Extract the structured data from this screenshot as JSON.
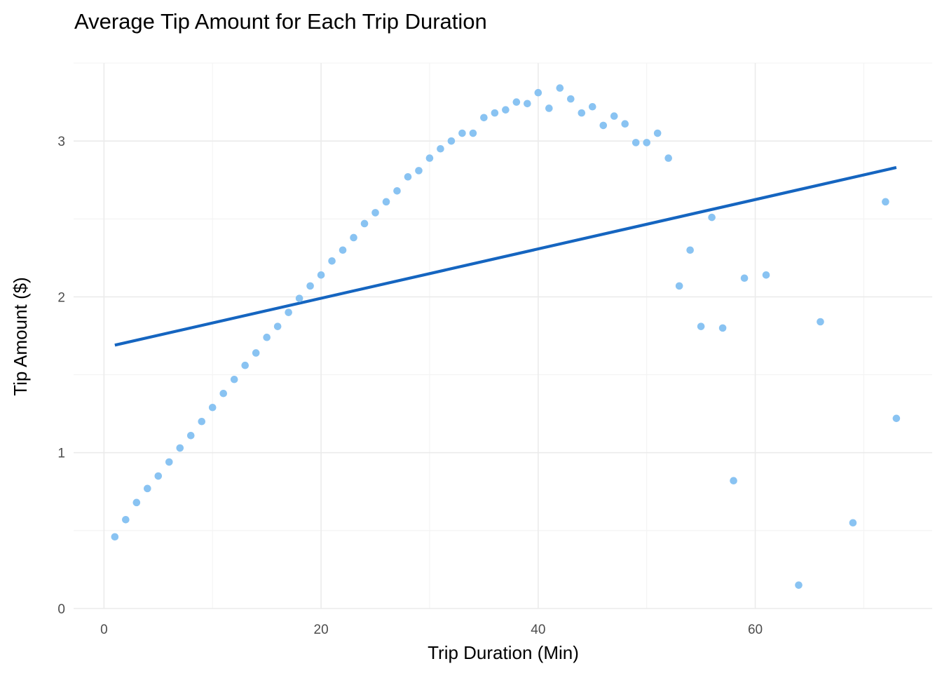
{
  "chart_data": {
    "type": "scatter",
    "title": "Average Tip Amount for Each Trip Duration",
    "xlabel": "Trip Duration (Min)",
    "ylabel": "Tip Amount ($)",
    "xlim": [
      -2.8,
      76.3
    ],
    "ylim": [
      0,
      3.5
    ],
    "x_ticks": [
      0,
      20,
      40,
      60
    ],
    "x_tick_labels": [
      "0",
      "20",
      "40",
      "60"
    ],
    "x_minor_ticks": [
      10,
      30,
      50,
      70
    ],
    "y_ticks": [
      0,
      1,
      2,
      3
    ],
    "y_tick_labels": [
      "0",
      "1",
      "2",
      "3"
    ],
    "y_minor_ticks": [
      0.5,
      1.5,
      2.5,
      3.5
    ],
    "grid": true,
    "legend": "none",
    "point_color": "#89c3f2",
    "line_color": "#1565c0",
    "series": [
      {
        "type": "scatter",
        "x": [
          1,
          2,
          3,
          4,
          5,
          6,
          7,
          8,
          9,
          10,
          11,
          12,
          13,
          14,
          15,
          16,
          17,
          18,
          19,
          20,
          21,
          22,
          23,
          24,
          25,
          26,
          27,
          28,
          29,
          30,
          31,
          32,
          33,
          34,
          35,
          36,
          37,
          38,
          39,
          40,
          41,
          42,
          43,
          44,
          45,
          46,
          47,
          48,
          49,
          50,
          51,
          52,
          53,
          54,
          55,
          56,
          57,
          58,
          59,
          61,
          64,
          66,
          69,
          72,
          73
        ],
        "y": [
          0.46,
          0.57,
          0.68,
          0.77,
          0.85,
          0.94,
          1.03,
          1.11,
          1.2,
          1.29,
          1.38,
          1.47,
          1.56,
          1.64,
          1.74,
          1.81,
          1.9,
          1.99,
          2.07,
          2.14,
          2.23,
          2.3,
          2.38,
          2.47,
          2.54,
          2.61,
          2.68,
          2.77,
          2.81,
          2.89,
          2.95,
          3.0,
          3.05,
          3.05,
          3.15,
          3.18,
          3.2,
          3.25,
          3.24,
          3.31,
          3.21,
          3.34,
          3.27,
          3.18,
          3.22,
          3.1,
          3.16,
          3.11,
          2.99,
          2.99,
          3.05,
          2.89,
          2.07,
          2.3,
          1.81,
          2.51,
          1.8,
          0.82,
          2.12,
          2.14,
          0.15,
          1.84,
          0.55,
          2.61,
          1.22
        ]
      },
      {
        "type": "line",
        "x": [
          1,
          73
        ],
        "y": [
          1.69,
          2.83
        ]
      }
    ]
  }
}
